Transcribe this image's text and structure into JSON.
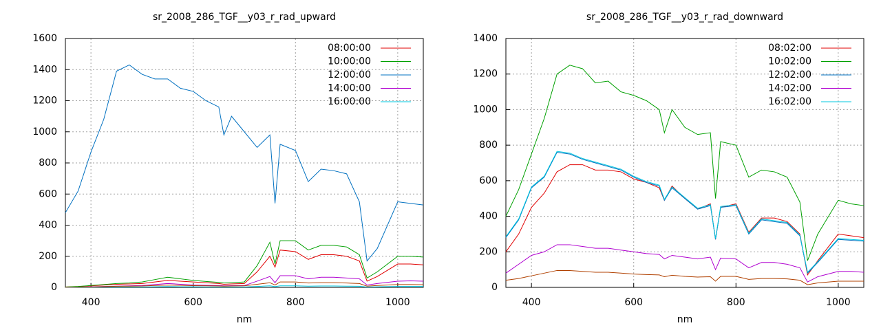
{
  "chart_data": [
    {
      "type": "line",
      "title": "sr_2008_286_TGF__y03_r_rad_upward",
      "xlabel": "nm",
      "x": [
        350,
        375,
        400,
        425,
        450,
        475,
        500,
        525,
        550,
        575,
        600,
        625,
        650,
        660,
        675,
        700,
        725,
        750,
        760,
        770,
        800,
        825,
        850,
        875,
        900,
        925,
        940,
        960,
        1000,
        1025,
        1050
      ],
      "xlim": [
        350,
        1050
      ],
      "xticks": [
        400,
        600,
        800,
        1000
      ],
      "ylim": [
        0,
        1600
      ],
      "yticks": [
        0,
        200,
        400,
        600,
        800,
        1000,
        1200,
        1400,
        1600
      ],
      "grid": true,
      "legend": "top-right",
      "series": [
        {
          "name": "08:00:00",
          "color": "#e00000",
          "values": [
            2,
            5,
            10,
            15,
            20,
            22,
            25,
            35,
            45,
            40,
            35,
            30,
            25,
            20,
            22,
            25,
            100,
            200,
            130,
            240,
            230,
            180,
            210,
            210,
            200,
            170,
            40,
            70,
            150,
            150,
            145
          ]
        },
        {
          "name": "10:00:00",
          "color": "#00a000",
          "values": [
            3,
            6,
            12,
            18,
            25,
            28,
            35,
            50,
            65,
            55,
            45,
            38,
            32,
            28,
            30,
            35,
            140,
            290,
            150,
            300,
            300,
            240,
            270,
            270,
            260,
            210,
            60,
            100,
            200,
            200,
            195
          ]
        },
        {
          "name": "12:00:00",
          "color": "#0070c0",
          "values": [
            480,
            620,
            870,
            1080,
            1390,
            1430,
            1370,
            1340,
            1340,
            1280,
            1260,
            1200,
            1160,
            980,
            1100,
            1000,
            900,
            980,
            540,
            920,
            880,
            680,
            760,
            750,
            730,
            550,
            170,
            250,
            550,
            540,
            530
          ]
        },
        {
          "name": "14:00:00",
          "color": "#b000d0",
          "values": [
            1,
            2,
            4,
            6,
            8,
            10,
            12,
            18,
            25,
            20,
            15,
            13,
            12,
            10,
            11,
            12,
            40,
            70,
            30,
            75,
            75,
            55,
            65,
            65,
            60,
            55,
            15,
            25,
            40,
            42,
            40
          ]
        },
        {
          "name": "16:00:00",
          "color": "#00c8e0",
          "values": [
            0,
            1,
            1,
            2,
            2,
            3,
            3,
            4,
            5,
            4,
            4,
            3,
            3,
            3,
            3,
            3,
            6,
            10,
            5,
            10,
            10,
            8,
            9,
            9,
            8,
            7,
            2,
            4,
            6,
            6,
            6
          ]
        },
        {
          "color": "#b04000",
          "values": [
            1,
            2,
            3,
            5,
            7,
            8,
            9,
            12,
            15,
            13,
            11,
            10,
            9,
            8,
            9,
            10,
            20,
            30,
            15,
            35,
            35,
            28,
            30,
            30,
            28,
            25,
            8,
            12,
            18,
            18,
            17
          ]
        }
      ]
    },
    {
      "type": "line",
      "title": "sr_2008_286_TGF__y03_r_rad_downward",
      "xlabel": "nm",
      "x": [
        350,
        375,
        400,
        425,
        450,
        475,
        500,
        525,
        550,
        575,
        600,
        625,
        650,
        660,
        675,
        700,
        725,
        750,
        760,
        770,
        800,
        825,
        850,
        875,
        900,
        925,
        940,
        960,
        1000,
        1025,
        1050
      ],
      "xlim": [
        350,
        1050
      ],
      "xticks": [
        400,
        600,
        800,
        1000
      ],
      "ylim": [
        0,
        1400
      ],
      "yticks": [
        0,
        200,
        400,
        600,
        800,
        1000,
        1200,
        1400
      ],
      "grid": true,
      "legend": "top-right",
      "series": [
        {
          "name": "08:02:00",
          "color": "#e00000",
          "values": [
            200,
            300,
            450,
            530,
            650,
            690,
            690,
            660,
            660,
            650,
            610,
            590,
            560,
            490,
            570,
            500,
            440,
            470,
            270,
            450,
            470,
            310,
            390,
            390,
            370,
            300,
            70,
            150,
            300,
            290,
            280
          ]
        },
        {
          "name": "10:02:00",
          "color": "#00a000",
          "values": [
            400,
            550,
            750,
            950,
            1200,
            1250,
            1230,
            1150,
            1160,
            1100,
            1080,
            1050,
            1000,
            870,
            1000,
            900,
            860,
            870,
            500,
            820,
            800,
            620,
            660,
            650,
            620,
            480,
            150,
            300,
            490,
            470,
            460
          ]
        },
        {
          "name": "12:02:00",
          "color": "#0070c0",
          "values": [
            280,
            380,
            560,
            620,
            760,
            750,
            720,
            700,
            680,
            660,
            620,
            590,
            570,
            490,
            560,
            500,
            440,
            460,
            270,
            450,
            460,
            300,
            380,
            370,
            360,
            290,
            80,
            140,
            270,
            265,
            260
          ]
        },
        {
          "name": "14:02:00",
          "color": "#b000d0",
          "values": [
            80,
            130,
            180,
            200,
            240,
            240,
            230,
            220,
            220,
            210,
            200,
            190,
            185,
            160,
            180,
            170,
            160,
            170,
            100,
            165,
            160,
            110,
            140,
            140,
            130,
            110,
            30,
            60,
            90,
            90,
            85
          ]
        },
        {
          "name": "16:02:00",
          "color": "#00c8e0",
          "values": [
            285,
            385,
            565,
            625,
            765,
            755,
            725,
            705,
            685,
            665,
            625,
            595,
            575,
            495,
            565,
            505,
            445,
            465,
            275,
            455,
            465,
            305,
            385,
            375,
            365,
            295,
            85,
            145,
            275,
            270,
            265
          ]
        },
        {
          "color": "#b04000",
          "values": [
            40,
            50,
            65,
            80,
            95,
            95,
            90,
            85,
            85,
            80,
            75,
            72,
            70,
            60,
            68,
            62,
            58,
            60,
            35,
            62,
            62,
            45,
            50,
            50,
            48,
            40,
            15,
            25,
            35,
            35,
            35
          ]
        }
      ]
    }
  ]
}
